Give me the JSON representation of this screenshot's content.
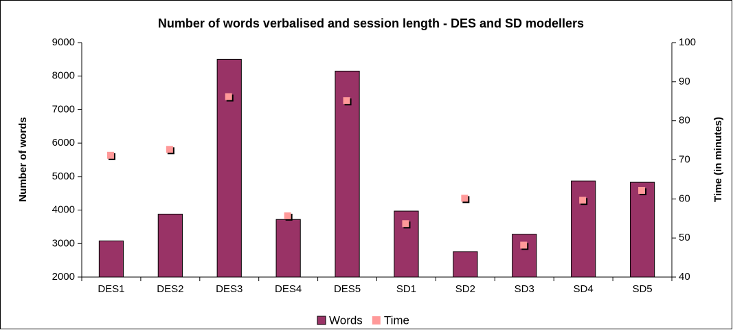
{
  "chart_data": {
    "type": "bar",
    "title": "Number of words verbalised and session length - DES and SD modellers",
    "ylabel": "Number of words",
    "y2label": "Time (in minutes)",
    "categories": [
      "DES1",
      "DES2",
      "DES3",
      "DES4",
      "DES5",
      "SD1",
      "SD2",
      "SD3",
      "SD4",
      "SD5"
    ],
    "series": [
      {
        "name": "Words",
        "type": "bar",
        "color": "#993366",
        "values": [
          3080,
          3880,
          8500,
          3720,
          8150,
          3970,
          2760,
          3280,
          4870,
          4830
        ]
      },
      {
        "name": "Time",
        "type": "scatter",
        "axis": "y2",
        "color": "#ff9999",
        "values": [
          71,
          72.5,
          86,
          55.5,
          85,
          53.5,
          60,
          48,
          59.5,
          62
        ]
      }
    ],
    "ylim": [
      2000,
      9000
    ],
    "yticks": [
      2000,
      3000,
      4000,
      5000,
      6000,
      7000,
      8000,
      9000
    ],
    "y2lim": [
      40,
      100
    ],
    "y2ticks": [
      40,
      50,
      60,
      70,
      80,
      90,
      100
    ],
    "legend": "bottom"
  }
}
